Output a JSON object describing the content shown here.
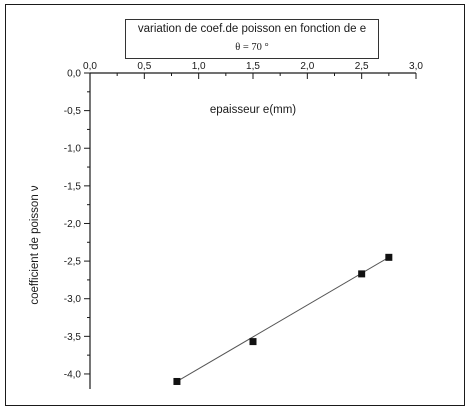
{
  "chart_data": {
    "type": "line",
    "title": "variation de coef.de poisson en fonction de e",
    "subtitle": "θ = 70 °",
    "xlabel": "epaisseur e(mm)",
    "ylabel": "coefficient de poisson ν",
    "xlim": [
      0.0,
      3.0
    ],
    "ylim": [
      -4.2,
      0.0
    ],
    "x_ticks": [
      "0,0",
      "0,5",
      "1,0",
      "1,5",
      "2,0",
      "2,5",
      "3,0"
    ],
    "y_ticks": [
      "0,0",
      "-0,5",
      "-1,0",
      "-1,5",
      "-2,0",
      "-2,5",
      "-3,0",
      "-3,5",
      "-4,0"
    ],
    "x_axis_position": "top",
    "grid": false,
    "series": [
      {
        "x": [
          0.8,
          1.5,
          2.5,
          2.75
        ],
        "y": [
          -4.1,
          -3.57,
          -2.67,
          -2.45
        ],
        "marker": "square",
        "color": "#111111"
      }
    ],
    "fit_line": {
      "x": [
        0.8,
        2.75
      ],
      "y": [
        -4.1,
        -2.45
      ],
      "color": "#555555"
    }
  }
}
